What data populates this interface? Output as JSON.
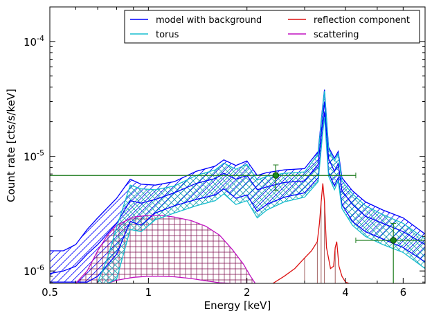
{
  "chart_data": {
    "type": "line",
    "xlabel": "Energy [keV]",
    "ylabel": "Count rate [cts/s/keV]",
    "xscale": "log",
    "yscale": "log",
    "xlim": [
      0.5,
      7.0
    ],
    "ylim": [
      7.8e-07,
      0.0002
    ],
    "x_ticks": [
      {
        "value": 0.5,
        "label": "0.5"
      },
      {
        "value": 1,
        "label": "1"
      },
      {
        "value": 2,
        "label": "2"
      },
      {
        "value": 4,
        "label": "4"
      },
      {
        "value": 6,
        "label": "6"
      }
    ],
    "y_ticks": [
      {
        "value": 1e-06,
        "base": "10",
        "exp": "-6"
      },
      {
        "value": 1e-05,
        "base": "10",
        "exp": "-5"
      },
      {
        "value": 0.0001,
        "base": "10",
        "exp": "-4"
      }
    ],
    "legend": {
      "position": "top-right",
      "columns": 2,
      "entries": [
        {
          "label": "model with background",
          "color": "#0000ff"
        },
        {
          "label": "reflection component",
          "color": "#dd1111"
        },
        {
          "label": "torus",
          "color": "#17becf"
        },
        {
          "label": "scattering",
          "color": "#c010c0"
        }
      ]
    },
    "series": [
      {
        "name": "model with background",
        "color": "#0000ff",
        "band": true,
        "hatch": "diagonal",
        "x": [
          0.5,
          0.55,
          0.6,
          0.65,
          0.7,
          0.8,
          0.88,
          0.95,
          1.05,
          1.2,
          1.4,
          1.6,
          1.7,
          1.85,
          2.0,
          2.15,
          2.3,
          2.6,
          3.0,
          3.3,
          3.4,
          3.45,
          3.55,
          3.7,
          3.8,
          3.9,
          4.2,
          4.6,
          5.2,
          6.0,
          7.0
        ],
        "upper": [
          1.5e-06,
          1.5e-06,
          1.7e-06,
          2.3e-06,
          2.9e-06,
          4.3e-06,
          6.3e-06,
          5.7e-06,
          5.6e-06,
          6e-06,
          7.4e-06,
          8.2e-06,
          9.3e-06,
          8.3e-06,
          9.1e-06,
          6.8e-06,
          7.2e-06,
          7.6e-06,
          7.8e-06,
          1.1e-05,
          2.6e-05,
          3.8e-05,
          1.2e-05,
          9.6e-06,
          1.1e-05,
          6.5e-06,
          5e-06,
          4e-06,
          3.4e-06,
          2.9e-06,
          2.1e-06
        ],
        "median": [
          9.5e-07,
          1e-06,
          1.1e-06,
          1.4e-06,
          1.7e-06,
          2.6e-06,
          4.1e-06,
          3.9e-06,
          4.2e-06,
          4.8e-06,
          5.8e-06,
          6.4e-06,
          7.1e-06,
          6.3e-06,
          6.8e-06,
          5.1e-06,
          5.4e-06,
          5.9e-06,
          6.1e-06,
          8.5e-06,
          2e-05,
          3e-05,
          9.5e-06,
          7.4e-06,
          8.6e-06,
          5e-06,
          3.8e-06,
          3e-06,
          2.6e-06,
          2.2e-06,
          1.7e-06
        ],
        "lower": [
          8e-07,
          8e-07,
          8e-07,
          8e-07,
          9e-07,
          1.4e-06,
          2.7e-06,
          2.5e-06,
          3.2e-06,
          3.7e-06,
          4.2e-06,
          4.6e-06,
          5.2e-06,
          4.3e-06,
          4.6e-06,
          3.3e-06,
          3.8e-06,
          4.4e-06,
          4.8e-06,
          6.5e-06,
          1.6e-05,
          2.4e-05,
          7.2e-06,
          5.5e-06,
          6.5e-06,
          3.8e-06,
          2.7e-06,
          2.2e-06,
          1.9e-06,
          1.6e-06,
          1.2e-06
        ]
      },
      {
        "name": "torus",
        "color": "#17becf",
        "band": true,
        "hatch": "cross-diagonal",
        "x": [
          0.7,
          0.75,
          0.8,
          0.88,
          0.95,
          1.05,
          1.2,
          1.4,
          1.6,
          1.7,
          1.85,
          2.0,
          2.15,
          2.3,
          2.6,
          3.0,
          3.3,
          3.4,
          3.45,
          3.55,
          3.7,
          3.8,
          3.9,
          4.2,
          4.6,
          5.2,
          6.0,
          7.0
        ],
        "upper": [
          8e-07,
          1.3e-06,
          2.4e-06,
          5.6e-06,
          5.2e-06,
          5.1e-06,
          5.5e-06,
          6.8e-06,
          7.6e-06,
          8.7e-06,
          7.7e-06,
          8.5e-06,
          6.2e-06,
          6.7e-06,
          7.1e-06,
          7.3e-06,
          1.05e-05,
          2.5e-05,
          3.7e-05,
          1.15e-05,
          9.1e-06,
          1.05e-05,
          6.1e-06,
          4.7e-06,
          3.7e-06,
          3.1e-06,
          2.6e-06,
          1.9e-06
        ],
        "lower": [
          7.8e-07,
          7.8e-07,
          8.5e-07,
          2.3e-06,
          2.2e-06,
          2.8e-06,
          3.2e-06,
          3.7e-06,
          4.1e-06,
          4.7e-06,
          3.8e-06,
          4.1e-06,
          2.9e-06,
          3.4e-06,
          4e-06,
          4.4e-06,
          6e-06,
          1.5e-05,
          2.2e-05,
          6.7e-06,
          5.1e-06,
          6.1e-06,
          3.5e-06,
          2.5e-06,
          2e-06,
          1.7e-06,
          1.45e-06,
          1.05e-06
        ]
      },
      {
        "name": "scattering",
        "color": "#c010c0",
        "band": true,
        "hatch": "grid",
        "x": [
          0.6,
          0.65,
          0.7,
          0.75,
          0.8,
          0.9,
          1.0,
          1.1,
          1.2,
          1.35,
          1.5,
          1.65,
          1.8,
          1.95,
          2.05,
          2.12
        ],
        "upper": [
          7.8e-07,
          1e-06,
          1.5e-06,
          2.05e-06,
          2.5e-06,
          2.95e-06,
          3.05e-06,
          3.05e-06,
          2.95e-06,
          2.75e-06,
          2.45e-06,
          2.05e-06,
          1.55e-06,
          1.15e-06,
          9e-07,
          7.8e-07
        ],
        "lower": [
          7.8e-07,
          7.8e-07,
          7.8e-07,
          7.8e-07,
          8.3e-07,
          8.8e-07,
          9e-07,
          9e-07,
          8.9e-07,
          8.6e-07,
          8.2e-07,
          7.9e-07,
          7.8e-07,
          7.8e-07,
          7.8e-07,
          7.8e-07
        ]
      },
      {
        "name": "reflection component",
        "color": "#dd1111",
        "band": false,
        "x": [
          2.4,
          2.6,
          2.8,
          3.0,
          3.15,
          3.28,
          3.33,
          3.37,
          3.41,
          3.45,
          3.5,
          3.6,
          3.68,
          3.72,
          3.76,
          3.82,
          3.9,
          4.0,
          4.1
        ],
        "values": [
          7.8e-07,
          9e-07,
          1.05e-06,
          1.3e-06,
          1.5e-06,
          1.8e-06,
          2.6e-06,
          4e-06,
          5.8e-06,
          4e-06,
          1.6e-06,
          1.05e-06,
          1.1e-06,
          1.6e-06,
          1.8e-06,
          1.1e-06,
          9e-07,
          8e-07,
          7.8e-07
        ]
      }
    ],
    "data_points": {
      "color": "#1a7a1a",
      "points": [
        {
          "x": 2.45,
          "y": 6.8e-06,
          "xerr": [
            0.5,
            4.3
          ],
          "yerr": [
            5e-06,
            8.4e-06
          ]
        },
        {
          "x": 5.6,
          "y": 1.85e-06,
          "xerr": [
            4.3,
            7.0
          ],
          "yerr": [
            7.8e-07,
            2.6e-06
          ]
        }
      ]
    }
  }
}
